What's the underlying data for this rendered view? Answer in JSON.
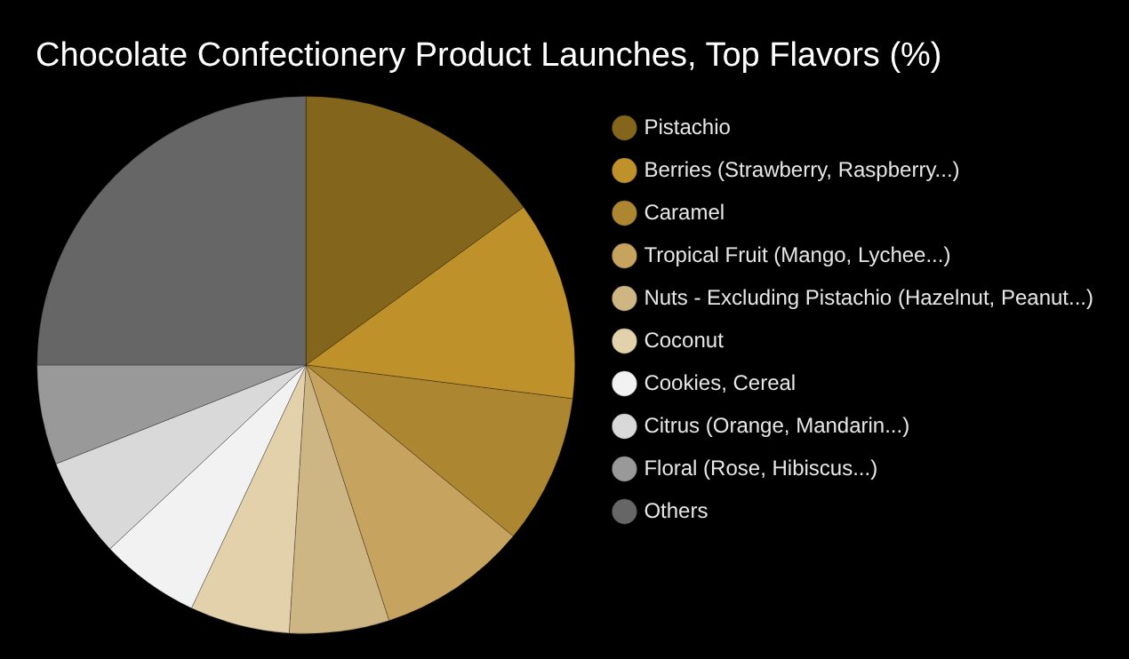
{
  "chart_data": {
    "type": "pie",
    "title": "Chocolate Confectionery Product Launches, Top Flavors (%)",
    "categories": [
      "Pistachio",
      "Berries (Strawberry, Raspberry...)",
      "Caramel",
      "Tropical Fruit (Mango, Lychee...)",
      "Nuts - Excluding Pistachio (Hazelnut, Peanut...)",
      "Coconut",
      "Cookies, Cereal",
      "Citrus (Orange, Mandarin...)",
      "Floral (Rose, Hibiscus...)",
      "Others"
    ],
    "values": [
      15,
      12,
      9,
      9,
      6,
      6,
      6,
      6,
      6,
      25
    ],
    "colors": [
      "#83651b",
      "#bf912a",
      "#ad8632",
      "#c6a35e",
      "#cdb584",
      "#e3d1ac",
      "#f2f2f2",
      "#d9d9d9",
      "#999999",
      "#666666"
    ],
    "legend": "right",
    "marker": "circle"
  }
}
